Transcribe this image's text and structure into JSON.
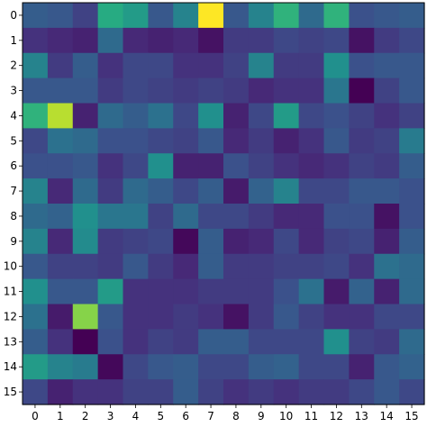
{
  "chart_data": {
    "type": "heatmap",
    "title": "",
    "xlabel": "",
    "ylabel": "",
    "x_ticks": [
      "0",
      "1",
      "2",
      "3",
      "4",
      "5",
      "6",
      "7",
      "8",
      "9",
      "10",
      "11",
      "12",
      "13",
      "14",
      "15"
    ],
    "y_ticks": [
      "0",
      "1",
      "2",
      "3",
      "4",
      "5",
      "6",
      "7",
      "8",
      "9",
      "10",
      "11",
      "12",
      "13",
      "14",
      "15"
    ],
    "colormap": "viridis",
    "value_range": [
      0,
      1
    ],
    "grid": false,
    "legend": "none",
    "values": [
      [
        0.3,
        0.28,
        0.2,
        0.62,
        0.55,
        0.28,
        0.45,
        1.0,
        0.28,
        0.45,
        0.65,
        0.35,
        0.65,
        0.25,
        0.28,
        0.3
      ],
      [
        0.15,
        0.12,
        0.1,
        0.35,
        0.12,
        0.1,
        0.12,
        0.05,
        0.18,
        0.18,
        0.22,
        0.2,
        0.22,
        0.05,
        0.18,
        0.22
      ],
      [
        0.45,
        0.18,
        0.3,
        0.15,
        0.22,
        0.22,
        0.15,
        0.15,
        0.2,
        0.45,
        0.18,
        0.18,
        0.5,
        0.25,
        0.28,
        0.28
      ],
      [
        0.28,
        0.28,
        0.28,
        0.18,
        0.22,
        0.2,
        0.18,
        0.2,
        0.18,
        0.12,
        0.15,
        0.15,
        0.4,
        0.0,
        0.2,
        0.28
      ],
      [
        0.65,
        0.9,
        0.1,
        0.35,
        0.3,
        0.38,
        0.22,
        0.5,
        0.1,
        0.22,
        0.55,
        0.22,
        0.25,
        0.2,
        0.15,
        0.2
      ],
      [
        0.22,
        0.38,
        0.35,
        0.25,
        0.25,
        0.22,
        0.2,
        0.28,
        0.12,
        0.18,
        0.1,
        0.15,
        0.28,
        0.18,
        0.2,
        0.42
      ],
      [
        0.25,
        0.25,
        0.28,
        0.15,
        0.22,
        0.5,
        0.1,
        0.1,
        0.25,
        0.2,
        0.15,
        0.12,
        0.15,
        0.2,
        0.18,
        0.3
      ],
      [
        0.45,
        0.12,
        0.35,
        0.18,
        0.35,
        0.3,
        0.22,
        0.3,
        0.08,
        0.32,
        0.45,
        0.22,
        0.22,
        0.28,
        0.28,
        0.25
      ],
      [
        0.35,
        0.32,
        0.5,
        0.4,
        0.4,
        0.2,
        0.35,
        0.22,
        0.22,
        0.18,
        0.12,
        0.12,
        0.25,
        0.25,
        0.05,
        0.25
      ],
      [
        0.45,
        0.12,
        0.48,
        0.18,
        0.2,
        0.22,
        0.02,
        0.3,
        0.1,
        0.12,
        0.22,
        0.12,
        0.2,
        0.22,
        0.1,
        0.3
      ],
      [
        0.28,
        0.2,
        0.2,
        0.18,
        0.28,
        0.18,
        0.12,
        0.3,
        0.18,
        0.18,
        0.2,
        0.2,
        0.22,
        0.15,
        0.38,
        0.35
      ],
      [
        0.5,
        0.28,
        0.28,
        0.55,
        0.15,
        0.15,
        0.15,
        0.18,
        0.18,
        0.18,
        0.25,
        0.38,
        0.08,
        0.32,
        0.1,
        0.35
      ],
      [
        0.38,
        0.08,
        0.82,
        0.28,
        0.15,
        0.15,
        0.18,
        0.15,
        0.05,
        0.18,
        0.28,
        0.2,
        0.15,
        0.15,
        0.22,
        0.22
      ],
      [
        0.3,
        0.15,
        0.0,
        0.25,
        0.15,
        0.2,
        0.18,
        0.3,
        0.3,
        0.22,
        0.22,
        0.22,
        0.5,
        0.2,
        0.18,
        0.35
      ],
      [
        0.55,
        0.45,
        0.42,
        0.02,
        0.22,
        0.28,
        0.3,
        0.22,
        0.22,
        0.3,
        0.32,
        0.22,
        0.22,
        0.1,
        0.28,
        0.32
      ],
      [
        0.22,
        0.1,
        0.15,
        0.15,
        0.2,
        0.2,
        0.3,
        0.2,
        0.15,
        0.18,
        0.15,
        0.18,
        0.18,
        0.22,
        0.28,
        0.22
      ]
    ]
  }
}
